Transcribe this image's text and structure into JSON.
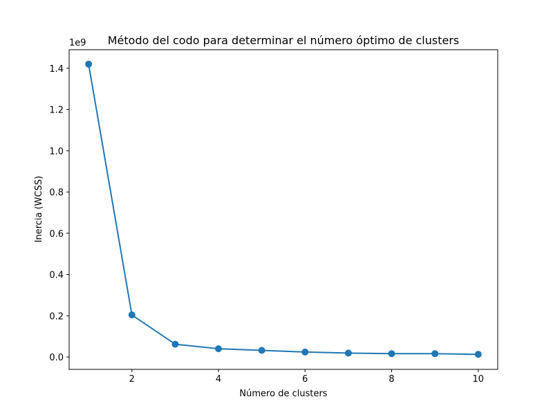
{
  "chart_data": {
    "type": "line",
    "title": "Método del codo para determinar el número óptimo de clusters",
    "xlabel": "Número de clusters",
    "ylabel": "Inercia (WCSS)",
    "y_offset_label": "1e9",
    "y_scale": 1000000000,
    "x": [
      1,
      2,
      3,
      4,
      5,
      6,
      7,
      8,
      9,
      10
    ],
    "series": [
      {
        "values": [
          1420000000,
          204000000,
          62000000,
          40000000,
          32000000,
          24000000,
          19000000,
          16000000,
          16000000,
          13000000
        ],
        "color": "#1f77b4",
        "marker": "circle"
      }
    ],
    "xlim": [
      0.55,
      10.45
    ],
    "ylim": [
      -60000000,
      1490000000
    ],
    "x_ticks": [
      2,
      4,
      6,
      8,
      10
    ],
    "x_tick_labels": [
      "2",
      "4",
      "6",
      "8",
      "10"
    ],
    "y_ticks": [
      0,
      200000000,
      400000000,
      600000000,
      800000000,
      1000000000,
      1200000000,
      1400000000
    ],
    "y_tick_labels": [
      "0.0",
      "0.2",
      "0.4",
      "0.6",
      "0.8",
      "1.0",
      "1.2",
      "1.4"
    ],
    "grid": false,
    "legend": "none"
  }
}
